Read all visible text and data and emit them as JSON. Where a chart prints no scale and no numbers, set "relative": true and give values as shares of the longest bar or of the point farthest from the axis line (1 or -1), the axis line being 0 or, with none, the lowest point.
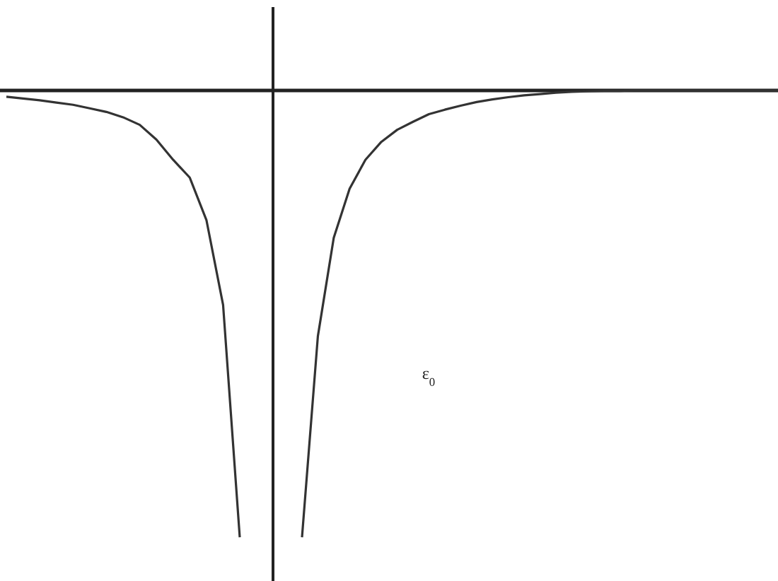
{
  "chart_data": [
    {
      "type": "line",
      "relative": true,
      "marker": "none",
      "line_style": "solid",
      "grid": false,
      "legend": false,
      "tick_labels": false,
      "categories": [
        null,
        null,
        null,
        null,
        null,
        null,
        null,
        null,
        null,
        null,
        null,
        null,
        null,
        null,
        null
      ],
      "series": [
        {
          "color": "#333333",
          "values": [
            -0.014,
            -0.018,
            -0.022,
            -0.027,
            -0.032,
            -0.04,
            -0.048,
            -0.06,
            -0.077,
            -0.11,
            -0.155,
            -0.195,
            -0.29,
            -0.48,
            -1
          ]
        }
      ]
    },
    {
      "type": "line",
      "relative": true,
      "marker": "none",
      "line_style": "solid",
      "grid": false,
      "legend": false,
      "tick_labels": false,
      "categories": [
        null,
        null,
        null,
        null,
        null,
        null,
        null,
        null,
        null,
        null,
        null,
        null,
        null,
        null,
        null,
        null,
        null,
        null,
        null,
        null,
        null,
        null,
        null,
        null,
        null,
        null,
        null,
        null,
        null,
        null,
        null
      ],
      "series": [
        {
          "color": "#333333",
          "values": [
            -1,
            -0.55,
            -0.33,
            -0.22,
            -0.155,
            -0.115,
            -0.088,
            -0.07,
            -0.053,
            -0.043,
            -0.034,
            -0.026,
            -0.02,
            -0.015,
            -0.011,
            -0.008,
            -0.005,
            -0.003,
            -0.002,
            -0.001,
            -0.001,
            0,
            0,
            0,
            0,
            0,
            0,
            0,
            0,
            0,
            0
          ]
        }
      ],
      "annotations": [
        "ε$_{0}$"
      ]
    }
  ]
}
